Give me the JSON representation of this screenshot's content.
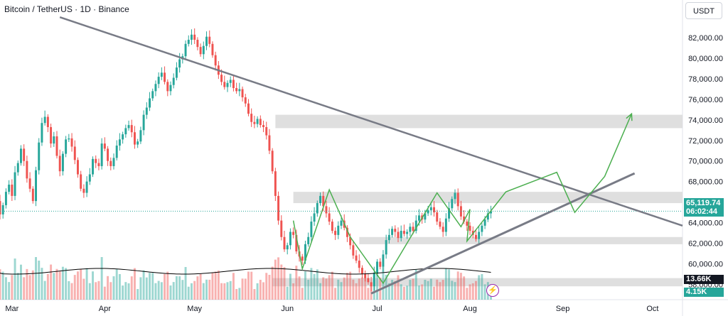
{
  "header": {
    "title": "Bitcoin / TetherUS · 1D · Binance",
    "currency": "USDT"
  },
  "price_tag": {
    "price": "65,119.74",
    "countdown": "06:02:44"
  },
  "volume_tags": {
    "volume_ma": "13.66K",
    "volume": "4.15K"
  },
  "colors": {
    "up": "#26a69a",
    "down": "#ef5350",
    "trendline": "#787b86",
    "projection": "#4caf50",
    "zone": "#d9d9d9",
    "vol_ma": "#000000"
  },
  "chart_data": {
    "type": "candlestick",
    "title": "Bitcoin / TetherUS · 1D · Binance",
    "y_axis": {
      "range": [
        56500,
        83600
      ],
      "ticks": [
        "82,000.00",
        "80,000.00",
        "78,000.00",
        "76,000.00",
        "74,000.00",
        "72,000.00",
        "70,000.00",
        "68,000.00",
        "66,000.00",
        "64,000.00",
        "62,000.00",
        "60,000.00",
        "58,000.00"
      ],
      "tick_values": [
        82000,
        80000,
        78000,
        76000,
        74000,
        72000,
        70000,
        68000,
        66000,
        64000,
        62000,
        60000,
        58000
      ]
    },
    "x_axis": {
      "labels": [
        "Mar",
        "Apr",
        "May",
        "Jun",
        "Jul",
        "Aug",
        "Sep",
        "Oct"
      ],
      "label_dates": [
        "2024-03-01",
        "2024-04-01",
        "2024-05-01",
        "2024-06-01",
        "2024-07-01",
        "2024-08-01",
        "2024-09-01",
        "2024-10-01"
      ],
      "range": [
        "2024-02-26",
        "2024-10-11"
      ]
    },
    "candles_close": [
      64000,
      63400,
      64800,
      64400,
      63900,
      65300,
      65600,
      67400,
      66100,
      64800,
      65700,
      67000,
      67700,
      66600,
      68900,
      69800,
      71200,
      70000,
      68300,
      67300,
      66100,
      69100,
      71800,
      73700,
      74300,
      73300,
      71700,
      72400,
      70500,
      69000,
      70700,
      72100,
      72200,
      71400,
      70100,
      68700,
      67300,
      66900,
      68000,
      68700,
      70200,
      69800,
      69500,
      71700,
      71200,
      70000,
      69500,
      70300,
      71500,
      72100,
      72600,
      73200,
      73500,
      72800,
      71600,
      71900,
      73000,
      74500,
      75200,
      76100,
      76800,
      77500,
      78200,
      78600,
      77700,
      76800,
      77400,
      78100,
      79100,
      79900,
      80200,
      81400,
      81800,
      82300,
      81800,
      81100,
      80400,
      81200,
      82100,
      81400,
      80300,
      79300,
      78400,
      77700,
      77200,
      77600,
      77900,
      77100,
      76800,
      77000,
      76200,
      75600,
      74600,
      73800,
      73600,
      74100,
      73500,
      73300,
      72500,
      71000,
      69000,
      66600,
      64200,
      62600,
      61400,
      61800,
      63100,
      62800,
      61200,
      60700,
      60300,
      61900,
      62600,
      64100,
      64900,
      65900,
      66600,
      65600,
      64900,
      64100,
      63200,
      62800,
      63700,
      64200,
      63500,
      62600,
      61800,
      60800,
      60300,
      59600,
      59000,
      58600,
      58200,
      57800,
      59100,
      60200,
      59700,
      60900,
      62300,
      62800,
      63400,
      63100,
      62500,
      63200,
      62900,
      63100,
      63600,
      63200,
      64200,
      64700,
      64300,
      64900,
      65200,
      65500,
      65000,
      64100,
      63600,
      63100,
      64400,
      65400,
      66300,
      66900,
      65600,
      64600,
      64100,
      63700,
      63200,
      62800,
      62400,
      63100,
      63700,
      64300,
      64900,
      65119.74
    ],
    "volume_ma_label": "13.66K",
    "last_volume_label": "4.15K",
    "last_price": 65119.74,
    "annotations": {
      "zones": [
        {
          "from": 73200,
          "to": 74500,
          "start": "2024-05-28",
          "end": "2024-10-11"
        },
        {
          "from": 65900,
          "to": 67000,
          "start": "2024-06-03",
          "end": "2024-10-11"
        },
        {
          "from": 61900,
          "to": 62600,
          "start": "2024-06-25",
          "end": "2024-10-11"
        },
        {
          "from": 57800,
          "to": 58600,
          "start": "2024-05-27",
          "end": "2024-10-11"
        }
      ],
      "descending_trendline": [
        [
          "2024-03-17",
          84000
        ],
        [
          "2024-10-11",
          63700
        ]
      ],
      "ascending_trendline": [
        [
          "2024-06-29",
          57100
        ],
        [
          "2024-09-25",
          68800
        ]
      ],
      "projection_path": [
        [
          "2024-06-03",
          64200
        ],
        [
          "2024-06-06",
          59500
        ],
        [
          "2024-06-15",
          67200
        ],
        [
          "2024-06-22",
          62600
        ],
        [
          "2024-07-03",
          58100
        ],
        [
          "2024-07-21",
          66900
        ],
        [
          "2024-07-29",
          63600
        ],
        [
          "2024-08-01",
          65300
        ],
        [
          "2024-07-31",
          62200
        ],
        [
          "2024-08-13",
          67000
        ],
        [
          "2024-08-30",
          68900
        ],
        [
          "2024-09-05",
          65000
        ],
        [
          "2024-09-15",
          68500
        ],
        [
          "2024-09-24",
          74600
        ]
      ]
    }
  }
}
